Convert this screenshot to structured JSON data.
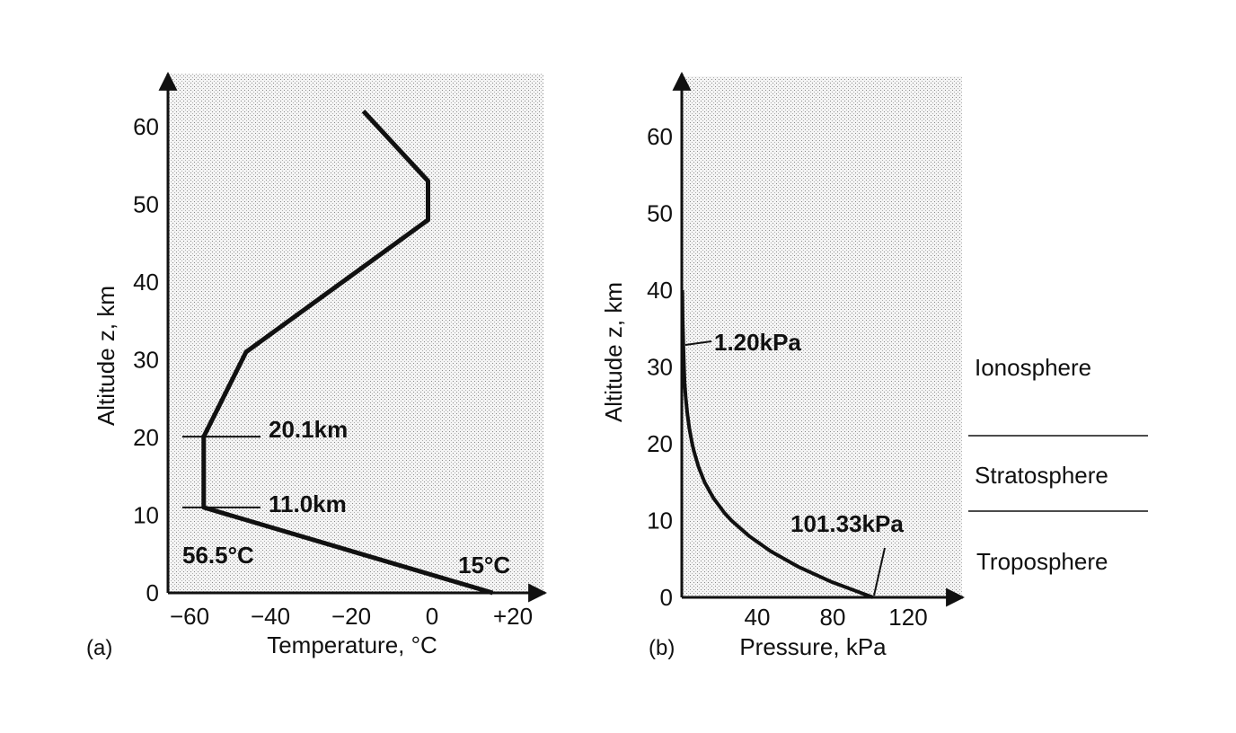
{
  "chart_data": [
    {
      "type": "line",
      "panel_label": "(a)",
      "xlabel": "Temperature, °C",
      "ylabel": "Altitude z, km",
      "xlim": [
        -70,
        40
      ],
      "ylim": [
        0,
        66
      ],
      "x_ticks": [
        -60,
        -40,
        -20,
        0,
        20
      ],
      "x_tick_labels": [
        "−60",
        "−40",
        "−20",
        "0",
        "+20"
      ],
      "y_ticks": [
        0,
        10,
        20,
        30,
        40,
        50,
        60
      ],
      "y_tick_labels": [
        "0",
        "10",
        "20",
        "30",
        "40",
        "50",
        "60"
      ],
      "grid": false,
      "series": [
        {
          "points": [
            {
              "x": 15,
              "y": 0
            },
            {
              "x": -56.5,
              "y": 11.0
            },
            {
              "x": -56.5,
              "y": 20.1
            },
            {
              "x": -46,
              "y": 31
            },
            {
              "x": -1,
              "y": 48
            },
            {
              "x": -1,
              "y": 53
            },
            {
              "x": -17,
              "y": 62
            }
          ]
        }
      ],
      "annotations": [
        {
          "text": "20.1km",
          "x": -56.5,
          "y": 20.1
        },
        {
          "text": "11.0km",
          "x": -56.5,
          "y": 11.0
        },
        {
          "text": "56.5°C",
          "x": -62,
          "y": 4
        },
        {
          "text": "15°C",
          "x": 14,
          "y": 3
        }
      ]
    },
    {
      "type": "line",
      "panel_label": "(b)",
      "xlabel": "Pressure, kPa",
      "ylabel": "Altitude z, km",
      "xlim": [
        0,
        140
      ],
      "ylim": [
        0,
        66
      ],
      "x_ticks": [
        40,
        80,
        120
      ],
      "x_tick_labels": [
        "40",
        "80",
        "120"
      ],
      "y_ticks": [
        0,
        10,
        20,
        30,
        40,
        50,
        60
      ],
      "y_tick_labels": [
        "0",
        "10",
        "20",
        "30",
        "40",
        "50",
        "60"
      ],
      "grid": false,
      "series": [
        {
          "points": [
            {
              "x": 101.33,
              "y": 0
            },
            {
              "x": 79.5,
              "y": 2
            },
            {
              "x": 61.6,
              "y": 4
            },
            {
              "x": 47.2,
              "y": 6
            },
            {
              "x": 35.6,
              "y": 8
            },
            {
              "x": 26.4,
              "y": 10
            },
            {
              "x": 22.6,
              "y": 11
            },
            {
              "x": 16.6,
              "y": 13
            },
            {
              "x": 12.1,
              "y": 15
            },
            {
              "x": 8.85,
              "y": 17
            },
            {
              "x": 6.47,
              "y": 19
            },
            {
              "x": 5.53,
              "y": 20
            },
            {
              "x": 4.0,
              "y": 22
            },
            {
              "x": 2.9,
              "y": 24
            },
            {
              "x": 2.1,
              "y": 26
            },
            {
              "x": 1.5,
              "y": 28
            },
            {
              "x": 1.2,
              "y": 30
            },
            {
              "x": 0.8,
              "y": 33
            },
            {
              "x": 0.5,
              "y": 36
            },
            {
              "x": 0.3,
              "y": 40
            }
          ]
        }
      ],
      "annotations": [
        {
          "text": "1.20kPa",
          "x": 1.2,
          "y": 32
        },
        {
          "text": "101.33kPa",
          "x": 101.33,
          "y": 0
        }
      ],
      "layers": [
        "Ionosphere",
        "Stratosphere",
        "Troposphere"
      ]
    }
  ]
}
